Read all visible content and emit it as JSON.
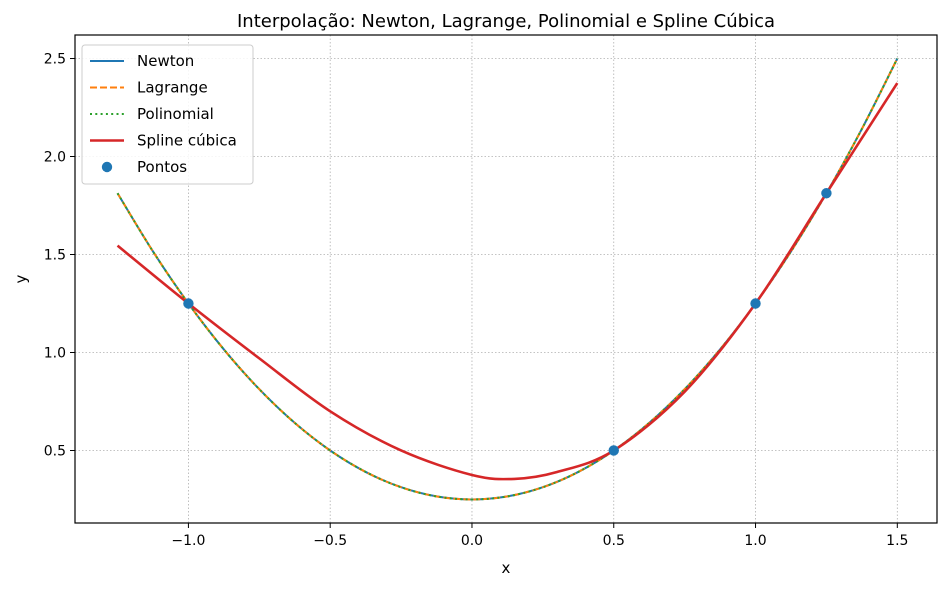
{
  "chart_data": {
    "type": "line",
    "title": "Interpolação: Newton, Lagrange, Polinomial e Spline Cúbica",
    "xlabel": "x",
    "ylabel": "y",
    "xlim": [
      -1.4,
      1.64
    ],
    "ylim": [
      0.13,
      2.62
    ],
    "xticks": [
      -1.0,
      -0.5,
      0.0,
      0.5,
      1.0,
      1.5
    ],
    "xtick_labels": [
      "−1.0",
      "−0.5",
      "0.0",
      "0.5",
      "1.0",
      "1.5"
    ],
    "yticks": [
      0.5,
      1.0,
      1.5,
      2.0,
      2.5
    ],
    "ytick_labels": [
      "0.5",
      "1.0",
      "1.5",
      "2.0",
      "2.5"
    ],
    "grid": true,
    "grid_style": "dotted",
    "legend_position": "top-left",
    "series": [
      {
        "name": "Newton",
        "style": "solid",
        "color": "#1f77b4",
        "x": [
          -1.25,
          -1.125,
          -1.0,
          -0.875,
          -0.75,
          -0.625,
          -0.5,
          -0.375,
          -0.25,
          -0.125,
          0.0,
          0.125,
          0.25,
          0.375,
          0.5,
          0.625,
          0.75,
          0.875,
          1.0,
          1.125,
          1.25,
          1.375,
          1.5
        ],
        "y": [
          1.8125,
          1.5156,
          1.25,
          1.0156,
          0.8125,
          0.6406,
          0.5,
          0.3906,
          0.3125,
          0.2656,
          0.25,
          0.2656,
          0.3125,
          0.3906,
          0.5,
          0.6406,
          0.8125,
          1.0156,
          1.25,
          1.5156,
          1.8125,
          2.1406,
          2.5
        ]
      },
      {
        "name": "Lagrange",
        "style": "dashed",
        "color": "#ff7f0e",
        "x": [
          -1.25,
          -1.125,
          -1.0,
          -0.875,
          -0.75,
          -0.625,
          -0.5,
          -0.375,
          -0.25,
          -0.125,
          0.0,
          0.125,
          0.25,
          0.375,
          0.5,
          0.625,
          0.75,
          0.875,
          1.0,
          1.125,
          1.25,
          1.375,
          1.5
        ],
        "y": [
          1.8125,
          1.5156,
          1.25,
          1.0156,
          0.8125,
          0.6406,
          0.5,
          0.3906,
          0.3125,
          0.2656,
          0.25,
          0.2656,
          0.3125,
          0.3906,
          0.5,
          0.6406,
          0.8125,
          1.0156,
          1.25,
          1.5156,
          1.8125,
          2.1406,
          2.5
        ]
      },
      {
        "name": "Polinomial",
        "style": "dotted",
        "color": "#2ca02c",
        "x": [
          -1.25,
          -1.125,
          -1.0,
          -0.875,
          -0.75,
          -0.625,
          -0.5,
          -0.375,
          -0.25,
          -0.125,
          0.0,
          0.125,
          0.25,
          0.375,
          0.5,
          0.625,
          0.75,
          0.875,
          1.0,
          1.125,
          1.25,
          1.375,
          1.5
        ],
        "y": [
          1.8125,
          1.5156,
          1.25,
          1.0156,
          0.8125,
          0.6406,
          0.5,
          0.3906,
          0.3125,
          0.2656,
          0.25,
          0.2656,
          0.3125,
          0.3906,
          0.5,
          0.6406,
          0.8125,
          1.0156,
          1.25,
          1.5156,
          1.8125,
          2.1406,
          2.5
        ]
      },
      {
        "name": "Spline cúbica",
        "style": "solid-thick",
        "color": "#d62728",
        "x": [
          -1.25,
          -1.0,
          -0.75,
          -0.5,
          -0.25,
          0.0,
          0.15,
          0.3,
          0.5,
          0.75,
          1.0,
          1.25,
          1.5
        ],
        "y": [
          1.545,
          1.25,
          0.97,
          0.7,
          0.5,
          0.375,
          0.355,
          0.39,
          0.5,
          0.8,
          1.25,
          1.8125,
          2.375
        ]
      }
    ],
    "points": {
      "name": "Pontos",
      "color": "#1f77b4",
      "x": [
        -1.0,
        0.5,
        1.0,
        1.25
      ],
      "y": [
        1.25,
        0.5,
        1.25,
        1.8125
      ]
    }
  }
}
